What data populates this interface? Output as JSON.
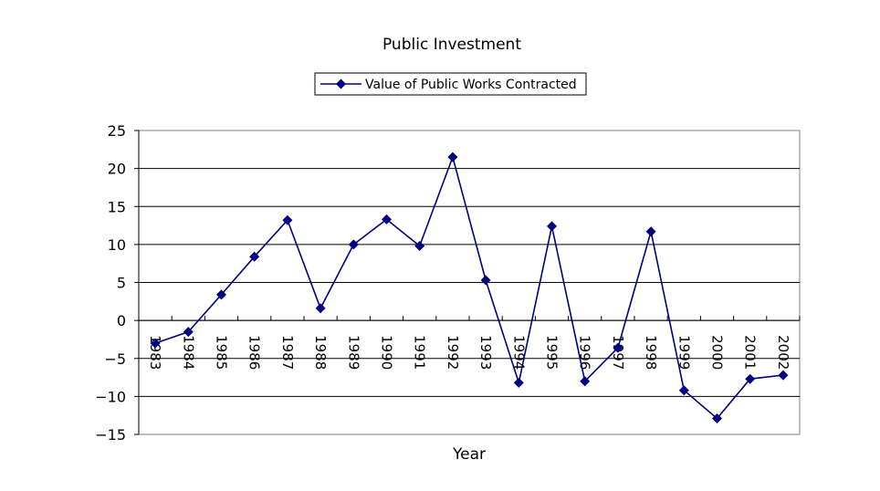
{
  "chart_data": {
    "type": "line",
    "title": "Public Investment",
    "xlabel": "Year",
    "ylabel": "",
    "ylim": [
      -15,
      25
    ],
    "yticks": [
      25,
      20,
      15,
      10,
      5,
      0,
      -5,
      -10,
      -15
    ],
    "ytick_labels": [
      "25",
      "20",
      "15",
      "10",
      "5",
      "0",
      "−5",
      "−10",
      "−15"
    ],
    "grid": true,
    "legend_position": "top-center",
    "categories": [
      "1983",
      "1984",
      "1985",
      "1986",
      "1987",
      "1988",
      "1989",
      "1990",
      "1991",
      "1992",
      "1993",
      "1994",
      "1995",
      "1996",
      "1997",
      "1998",
      "1999",
      "2000",
      "2001",
      "2002"
    ],
    "series": [
      {
        "name": "Value of Public Works Contracted",
        "color": "#000080",
        "marker": "diamond",
        "values": [
          -3.0,
          -1.5,
          3.4,
          8.4,
          13.2,
          1.6,
          10.0,
          13.3,
          9.8,
          21.5,
          5.3,
          -8.2,
          12.4,
          -8.0,
          -3.6,
          11.7,
          -9.2,
          -12.9,
          -7.7,
          -7.2
        ]
      }
    ]
  }
}
